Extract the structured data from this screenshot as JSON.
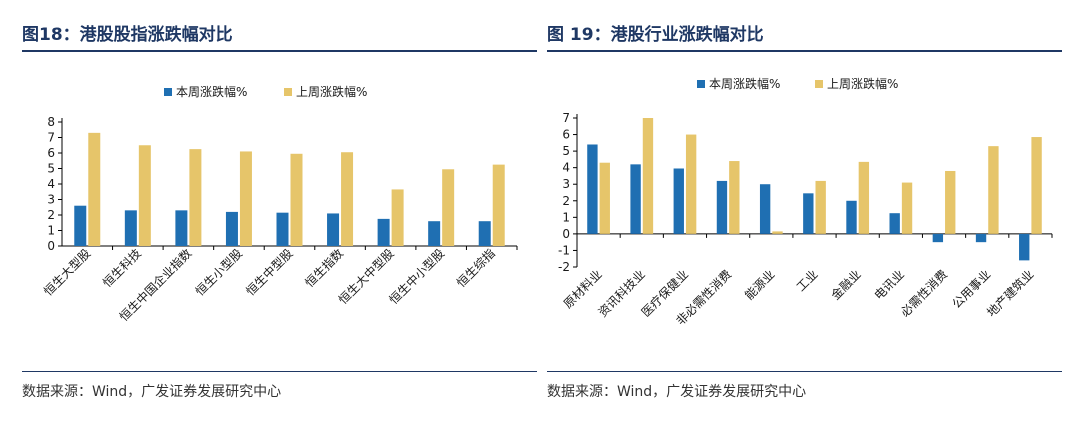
{
  "colors": {
    "this_week": "#1f6fb2",
    "last_week": "#e6c56a",
    "title": "#1f3864",
    "axis": "#000000"
  },
  "fig18": {
    "title": "图18：港股股指涨跌幅对比",
    "source": "数据来源：Wind，广发证券发展研究中心"
  },
  "fig19": {
    "title": "图 19：港股行业涨跌幅对比",
    "source": "数据来源：Wind，广发证券发展研究中心"
  },
  "chart_data": [
    {
      "type": "bar",
      "categories": [
        "恒生大型股",
        "恒生科技",
        "恒生中国企业指数",
        "恒生小型股",
        "恒生中型股",
        "恒生指数",
        "恒生大中型股",
        "恒生中小型股",
        "恒生综指"
      ],
      "series": [
        {
          "name": "本周涨跌幅%",
          "values": [
            2.6,
            2.3,
            2.3,
            2.2,
            2.15,
            2.1,
            1.75,
            1.6,
            1.6
          ]
        },
        {
          "name": "上周涨跌幅%",
          "values": [
            7.3,
            6.5,
            6.25,
            6.1,
            5.95,
            6.05,
            3.65,
            4.95,
            5.25
          ]
        }
      ],
      "ylim": [
        0,
        8
      ],
      "yticks": [
        0,
        1,
        2,
        3,
        4,
        5,
        6,
        7,
        8
      ],
      "legend": "top"
    },
    {
      "type": "bar",
      "categories": [
        "原材料业",
        "资讯科技业",
        "医疗保健业",
        "非必需性消费",
        "能源业",
        "工业",
        "金融业",
        "电讯业",
        "必需性消费",
        "公用事业",
        "地产建筑业"
      ],
      "series": [
        {
          "name": "本周涨跌幅%",
          "values": [
            5.4,
            4.2,
            3.95,
            3.2,
            3.0,
            2.45,
            2.0,
            1.25,
            -0.5,
            -0.5,
            -1.6
          ]
        },
        {
          "name": "上周涨跌幅%",
          "values": [
            4.3,
            7.0,
            6.0,
            4.4,
            0.15,
            3.2,
            4.35,
            3.1,
            3.8,
            5.3,
            5.85
          ]
        }
      ],
      "ylim": [
        -2,
        7
      ],
      "yticks": [
        -2,
        -1,
        0,
        1,
        2,
        3,
        4,
        5,
        6,
        7
      ],
      "legend": "top"
    }
  ]
}
